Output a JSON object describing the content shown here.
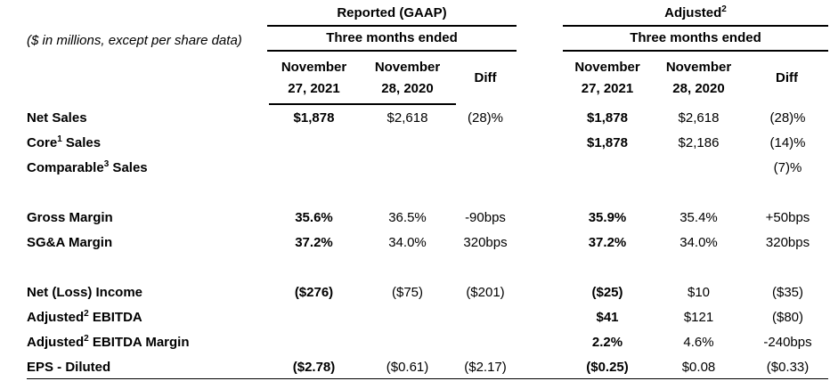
{
  "note": "($ in millions, except per share data)",
  "groups": {
    "reported": {
      "title_pre": "Reported (GAAP)",
      "title_sup": "",
      "subtitle": "Three months ended",
      "col1_line1": "November",
      "col1_line2": "27, 2021",
      "col2_line1": "November",
      "col2_line2": "28, 2020",
      "diff_label": "Diff"
    },
    "adjusted": {
      "title_pre": "Adjusted",
      "title_sup": "2",
      "subtitle": "Three months ended",
      "col1_line1": "November",
      "col1_line2": "27, 2021",
      "col2_line1": "November",
      "col2_line2": "28, 2020",
      "diff_label": "Diff"
    }
  },
  "rows": [
    {
      "label_pre": "Net Sales",
      "label_sup": "",
      "label_post": "",
      "rep": [
        "$1,878",
        "$2,618",
        "(28)%"
      ],
      "adj": [
        "$1,878",
        "$2,618",
        "(28)%"
      ]
    },
    {
      "label_pre": "Core",
      "label_sup": "1",
      "label_post": " Sales",
      "rep": [
        "",
        "",
        ""
      ],
      "adj": [
        "$1,878",
        "$2,186",
        "(14)%"
      ]
    },
    {
      "label_pre": "Comparable",
      "label_sup": "3",
      "label_post": " Sales",
      "rep": [
        "",
        "",
        ""
      ],
      "adj": [
        "",
        "",
        "(7)%"
      ]
    },
    {
      "label_pre": "Gross Margin",
      "label_sup": "",
      "label_post": "",
      "rep": [
        "35.6%",
        "36.5%",
        "-90bps"
      ],
      "adj": [
        "35.9%",
        "35.4%",
        "+50bps"
      ]
    },
    {
      "label_pre": "SG&A Margin",
      "label_sup": "",
      "label_post": "",
      "rep": [
        "37.2%",
        "34.0%",
        "320bps"
      ],
      "adj": [
        "37.2%",
        "34.0%",
        "320bps"
      ]
    },
    {
      "label_pre": "Net (Loss) Income",
      "label_sup": "",
      "label_post": "",
      "rep": [
        "($276)",
        "($75)",
        "($201)"
      ],
      "adj": [
        "($25)",
        "$10",
        "($35)"
      ]
    },
    {
      "label_pre": "Adjusted",
      "label_sup": "2",
      "label_post": " EBITDA",
      "rep": [
        "",
        "",
        ""
      ],
      "adj": [
        "$41",
        "$121",
        "($80)"
      ]
    },
    {
      "label_pre": "Adjusted",
      "label_sup": "2",
      "label_post": " EBITDA Margin",
      "rep": [
        "",
        "",
        ""
      ],
      "adj": [
        "2.2%",
        "4.6%",
        "-240bps"
      ]
    },
    {
      "label_pre": "EPS - Diluted",
      "label_sup": "",
      "label_post": "",
      "rep": [
        "($2.78)",
        "($0.61)",
        "($2.17)"
      ],
      "adj": [
        "($0.25)",
        "$0.08",
        "($0.33)"
      ]
    }
  ],
  "colors": {
    "text": "#000000",
    "background": "#ffffff",
    "rule": "#000000"
  }
}
